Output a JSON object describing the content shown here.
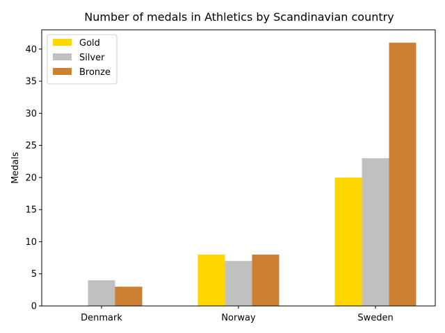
{
  "chart_data": {
    "type": "bar",
    "title": "Number of medals in Athletics by Scandinavian country",
    "xlabel": "",
    "ylabel": "Medals",
    "categories": [
      "Denmark",
      "Norway",
      "Sweden"
    ],
    "series": [
      {
        "name": "Gold",
        "color": "#ffd700",
        "values": [
          0,
          8,
          20
        ]
      },
      {
        "name": "Silver",
        "color": "#c0c0c0",
        "values": [
          4,
          7,
          23
        ]
      },
      {
        "name": "Bronze",
        "color": "#cd7f32",
        "values": [
          3,
          8,
          41
        ]
      }
    ],
    "ylim": [
      0,
      43
    ],
    "yticks": [
      0,
      5,
      10,
      15,
      20,
      25,
      30,
      35,
      40
    ],
    "legend_position": "top-left",
    "grid": false
  }
}
